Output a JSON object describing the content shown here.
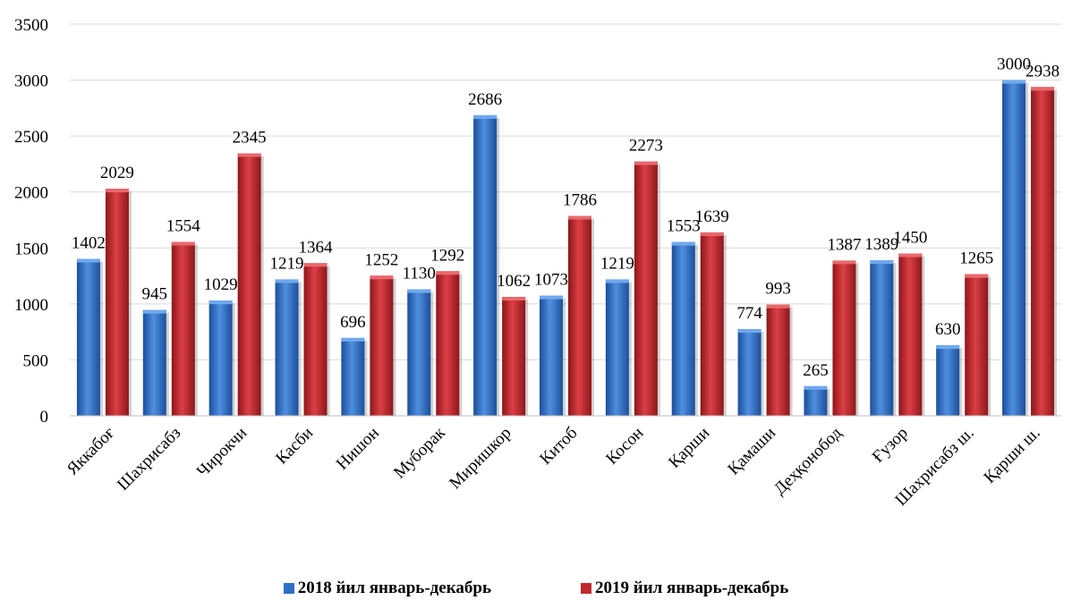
{
  "chart_data": {
    "type": "bar",
    "title": "",
    "xlabel": "",
    "ylabel": "",
    "ylim": [
      0,
      3500
    ],
    "yticks": [
      0,
      500,
      1000,
      1500,
      2000,
      2500,
      3000,
      3500
    ],
    "grid": true,
    "legend_position": "bottom",
    "categories": [
      "Яккабоғ",
      "Шахрисабз",
      "Чирокчи",
      "Касби",
      "Нишон",
      "Муборак",
      "Миришкор",
      "Китоб",
      "Косон",
      "Қарши",
      "Қамаши",
      "Деҳқонобод",
      "Ғузор",
      "Шахрисабз ш.",
      "Қарши ш."
    ],
    "series": [
      {
        "name": "2018 йил январь-декабрь",
        "color": "#2E6FC4",
        "values": [
          1402,
          945,
          1029,
          1219,
          696,
          1130,
          2686,
          1073,
          1219,
          1553,
          774,
          265,
          1389,
          630,
          3000
        ]
      },
      {
        "name": "2019 йил январь-декабрь",
        "color": "#C0282D",
        "values": [
          2029,
          1554,
          2345,
          1364,
          1252,
          1292,
          1062,
          1786,
          2273,
          1639,
          993,
          1387,
          1450,
          1265,
          2938
        ]
      }
    ]
  }
}
